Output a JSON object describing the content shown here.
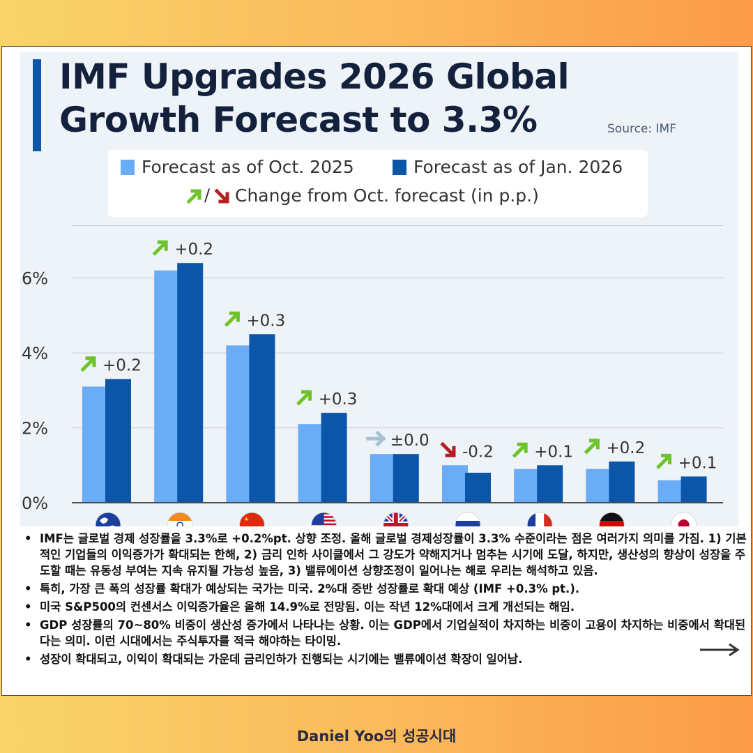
{
  "chart_data": {
    "type": "bar",
    "title": "IMF Upgrades 2026 Global Growth Forecast to 3.3%",
    "source": "Source: IMF",
    "categories": [
      "World",
      "IN",
      "CN",
      "US",
      "GB",
      "RU",
      "FR",
      "DE",
      "JP"
    ],
    "flag_icons": [
      "globe-icon",
      "india-flag-icon",
      "china-flag-icon",
      "us-flag-icon",
      "uk-flag-icon",
      "russia-flag-icon",
      "france-flag-icon",
      "germany-flag-icon",
      "japan-flag-icon"
    ],
    "series": [
      {
        "name": "Forecast as of Oct. 2025",
        "color": "#6aacf5",
        "values": [
          3.1,
          6.2,
          4.2,
          2.1,
          1.3,
          1.0,
          0.9,
          0.9,
          0.6
        ]
      },
      {
        "name": "Forecast as of Jan. 2026",
        "color": "#0b56a8",
        "values": [
          3.3,
          6.4,
          4.5,
          2.4,
          1.3,
          0.8,
          1.0,
          1.1,
          0.7
        ]
      }
    ],
    "change_legend": "Change from Oct. forecast (in p.p.)",
    "changes": [
      "+0.2",
      "+0.2",
      "+0.3",
      "+0.3",
      "±0.0",
      "-0.2",
      "+0.1",
      "+0.2",
      "+0.1"
    ],
    "change_direction": [
      "up",
      "up",
      "up",
      "up",
      "flat",
      "down",
      "up",
      "up",
      "up"
    ],
    "arrow_colors": {
      "up": "#6cc32a",
      "down": "#b51f24",
      "flat": "#a7c3d3"
    },
    "yticks": [
      0,
      2,
      4,
      6
    ],
    "ytick_labels": [
      "0%",
      "2%",
      "4%",
      "6%"
    ],
    "ylim": [
      0,
      7
    ],
    "grid": true
  },
  "notes": [
    "IMF는 글로벌 경제 성장률을 3.3%로 +0.2%pt. 상향 조정. 올해 글로벌 경제성장률이 3.3% 수준이라는 점은 여러가지 의미를 가짐. 1) 기본적인 기업들의 이익증가가 확대되는 한해, 2) 금리 인하 사이클에서 그 강도가 약해지거나 멈추는 시기에 도달, 하지만, 생산성의 향상이 성장을 주도할 때는 유동성 부여는 지속 유지될 가능성 높음, 3) 밸류에이션 상향조정이 일어나는 해로 우리는 해석하고 있음.",
    "특히, 가장 큰 폭의 성장률 확대가 예상되는 국가는 미국. 2%대 중반 성장률로 확대 예상 (IMF +0.3% pt.).",
    "미국 S&P500의 컨센서스 이익증가율은 올해 14.9%로 전망됨. 이는 작년 12%대에서 크게 개선되는 해임.",
    "GDP 성장률의 70~80% 비중이 생산성 증가에서 나타나는 상황. 이는 GDP에서 기업실적이 차지하는 비중이 고용이 차지하는 비중에서 확대된다는 의미. 이런 시대에서는 주식투자를 적극 해야하는 타이밍.",
    "성장이 확대되고, 이익이 확대되는 가운데 금리인하가 진행되는 시기에는 밸류에이션 확장이 일어남."
  ],
  "footer": "Daniel Yoo의 성공시대",
  "next_icon": "arrow-right-icon"
}
